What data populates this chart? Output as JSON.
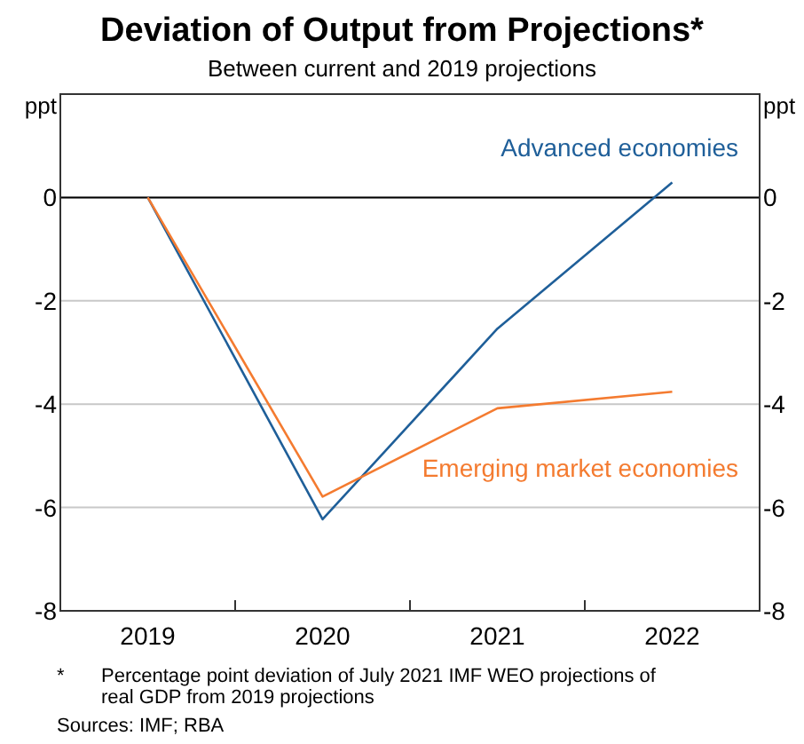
{
  "chart_data": {
    "type": "line",
    "title": "Deviation of Output from Projections*",
    "subtitle": "Between current and 2019 projections",
    "ylabel": "ppt",
    "y2label": "ppt",
    "categories": [
      "2019",
      "2020",
      "2021",
      "2022"
    ],
    "series": [
      {
        "name": "Advanced economies",
        "color": "#1f5f99",
        "values": [
          0,
          -6.23,
          -2.54,
          0.29
        ]
      },
      {
        "name": "Emerging market economies",
        "color": "#f47b30",
        "values": [
          0,
          -5.79,
          -4.08,
          -3.76
        ]
      }
    ],
    "ylim": [
      -8,
      2
    ],
    "yticks": [
      0,
      -2,
      -4,
      -6,
      -8
    ],
    "y2lim": [
      -8,
      2
    ],
    "y2ticks": [
      0,
      -2,
      -4,
      -6,
      -8
    ],
    "grid": "y",
    "marker": "none",
    "line_style": "solid",
    "ref_lines": [
      {
        "axis": "y",
        "value": 0,
        "color": "#000000"
      }
    ],
    "annotations": [
      "* Percentage point deviation of July 2021 IMF WEO projections of real GDP from 2019 projections",
      "Sources: IMF; RBA"
    ]
  }
}
